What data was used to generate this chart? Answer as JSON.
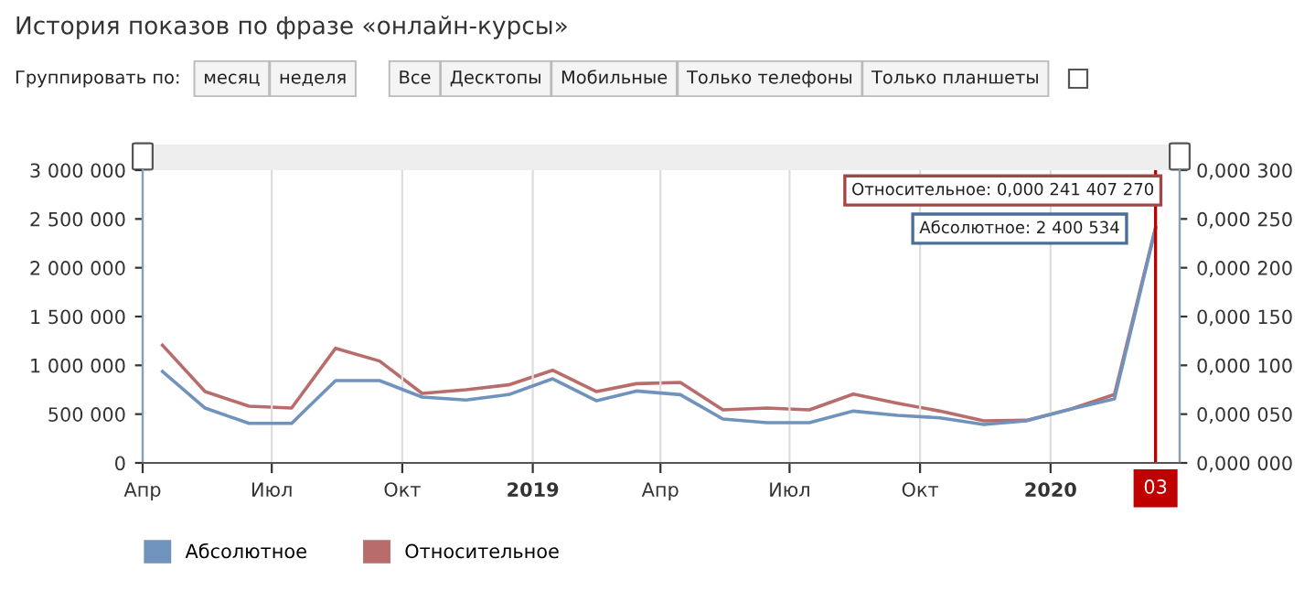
{
  "chart_data": {
    "type": "line",
    "title": "История показов по фразе «онлайн-курсы»",
    "annotations": [
      "Группировать по:",
      "месяц",
      "неделя",
      "Все",
      "Десктопы",
      "Мобильные",
      "Только телефоны",
      "Только планшеты",
      "Относительное: 0,000 241 407 270",
      {
        "text": "Абсолютное: 2 400 534",
        "x": "2020-03-15",
        "y": 2400534
      }
    ],
    "x": [
      "2018-04-15",
      "2018-05-15",
      "2018-06-15",
      "2018-07-15",
      "2018-08-15",
      "2018-09-15",
      "2018-10-15",
      "2018-11-15",
      "2018-12-15",
      "2019-01-15",
      "2019-02-15",
      "2019-03-15",
      "2019-04-15",
      "2019-05-15",
      "2019-06-15",
      "2019-07-15",
      "2019-08-15",
      "2019-09-15",
      "2019-10-15",
      "2019-11-15",
      "2019-12-15",
      "2020-01-15",
      "2020-02-15",
      "2020-03-15"
    ],
    "series": [
      {
        "name": "Абсолютное",
        "color": "#6f93bd",
        "values": [
          937000,
          562000,
          406000,
          406000,
          844000,
          844000,
          675000,
          644000,
          700000,
          862000,
          637000,
          737000,
          700000,
          450000,
          412000,
          412000,
          531000,
          487000,
          462000,
          394000,
          431000,
          550000,
          656000,
          2400534
        ]
      },
      {
        "name": "Относительное",
        "color": "#b86c6c",
        "axis": "y2",
        "values": [
          0.0001206,
          7.31e-05,
          5.81e-05,
          5.62e-05,
          0.0001175,
          0.0001044,
          7.12e-05,
          7.5e-05,
          8e-05,
          9.5e-05,
          7.31e-05,
          8.12e-05,
          8.25e-05,
          5.44e-05,
          5.62e-05,
          5.44e-05,
          7.06e-05,
          6.12e-05,
          5.31e-05,
          4.31e-05,
          4.37e-05,
          5.5e-05,
          7e-05,
          0.00024140727
        ]
      }
    ],
    "xlim": [
      "2018-04-01",
      "2020-04-01"
    ],
    "xticks": [
      {
        "value": "2018-04-01",
        "label": "Апр"
      },
      {
        "value": "2018-07-01",
        "label": "Июл"
      },
      {
        "value": "2018-10-01",
        "label": "Окт"
      },
      {
        "value": "2019-01-01",
        "label": "2019"
      },
      {
        "value": "2019-04-01",
        "label": "Апр"
      },
      {
        "value": "2019-07-01",
        "label": "Июл"
      },
      {
        "value": "2019-10-01",
        "label": "Окт"
      },
      {
        "value": "2020-01-01",
        "label": "2020"
      }
    ],
    "ylim": [
      0,
      3000000
    ],
    "yticks": [
      0,
      {
        "value": 500000,
        "label": "500 000"
      },
      {
        "value": 1000000,
        "label": "1 000 000"
      },
      {
        "value": 1500000,
        "label": "1 500 000"
      },
      {
        "value": 2000000,
        "label": "2 000 000"
      },
      {
        "value": 2500000,
        "label": "2 500 000"
      },
      {
        "value": 3000000,
        "label": "3 000 000"
      }
    ],
    "y2lim": [
      0,
      0.0003
    ],
    "y2ticks": [
      {
        "value": 0,
        "label": "0,000 000"
      },
      {
        "value": 5e-05,
        "label": "0,000 050"
      },
      {
        "value": 0.0001,
        "label": "0,000 100"
      },
      {
        "value": 0.00015,
        "label": "0,000 150"
      },
      {
        "value": 0.0002,
        "label": "0,000 200"
      },
      {
        "value": 0.00025,
        "label": "0,000 250"
      },
      {
        "value": 0.0003,
        "label": "0,000 300"
      }
    ],
    "ref_lines": [
      {
        "axis": "x",
        "value": "2020-03-15",
        "label": "03",
        "color": "#c00000"
      }
    ],
    "grid": "x",
    "legend": "bottom left",
    "marker": "none",
    "line_style": "solid"
  }
}
